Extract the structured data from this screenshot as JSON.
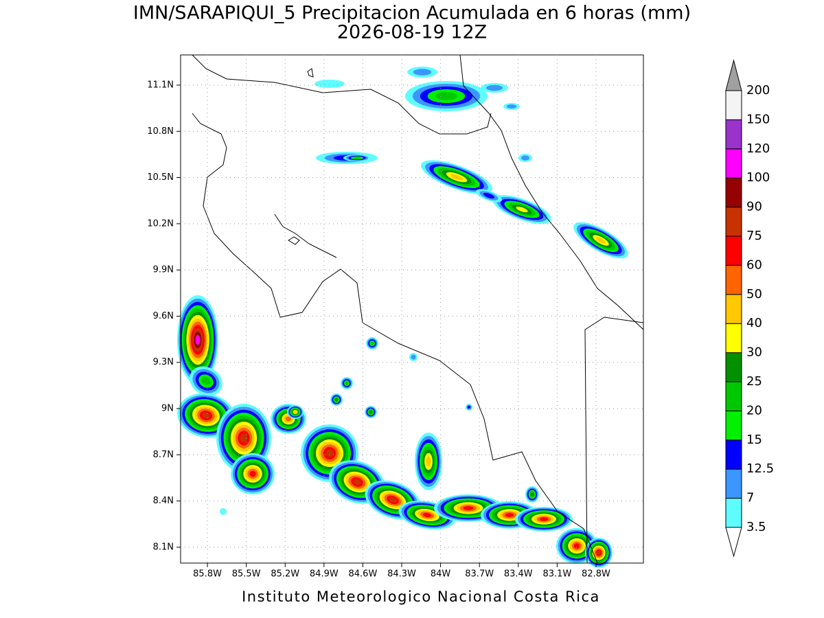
{
  "map": {
    "title": "IMN/SARAPIQUI_5 Precipitacion Acumulada en 6 horas (mm)",
    "subtitle": "2026-08-19 12Z",
    "credit": "Instituto Meteorologico Nacional Costa Rica",
    "lonlim": [
      -86.007,
      -82.434
    ],
    "latlim": [
      7.997,
      11.296
    ],
    "lon_ticks": [
      {
        "value": -85.8,
        "label": "85.8W"
      },
      {
        "value": -85.5,
        "label": "85.5W"
      },
      {
        "value": -85.2,
        "label": "85.2W"
      },
      {
        "value": -84.9,
        "label": "84.9W"
      },
      {
        "value": -84.6,
        "label": "84.6W"
      },
      {
        "value": -84.3,
        "label": "84.3W"
      },
      {
        "value": -84.0,
        "label": "84W"
      },
      {
        "value": -83.7,
        "label": "83.7W"
      },
      {
        "value": -83.4,
        "label": "83.4W"
      },
      {
        "value": -83.1,
        "label": "83.1W"
      },
      {
        "value": -82.8,
        "label": "82.8W"
      }
    ],
    "lat_ticks": [
      {
        "value": 8.1,
        "label": "8.1N"
      },
      {
        "value": 8.4,
        "label": "8.4N"
      },
      {
        "value": 8.7,
        "label": "8.7N"
      },
      {
        "value": 9.0,
        "label": "9N"
      },
      {
        "value": 9.3,
        "label": "9.3N"
      },
      {
        "value": 9.6,
        "label": "9.6N"
      },
      {
        "value": 9.9,
        "label": "9.9N"
      },
      {
        "value": 10.2,
        "label": "10.2N"
      },
      {
        "value": 10.5,
        "label": "10.5N"
      },
      {
        "value": 10.8,
        "label": "10.8N"
      },
      {
        "value": 11.1,
        "label": "11.1N"
      }
    ],
    "grid": true,
    "colorbar": {
      "levels": [
        3.5,
        7,
        12.5,
        15,
        20,
        25,
        30,
        40,
        50,
        60,
        75,
        90,
        100,
        120,
        150,
        200
      ],
      "under_color": "#ffffff",
      "over_color": "#a0a0a0",
      "colors": [
        "#5ffcff",
        "#3c96ff",
        "#0000ff",
        "#00f000",
        "#00c800",
        "#009000",
        "#ffff00",
        "#ffc800",
        "#ff6400",
        "#ff0000",
        "#c83200",
        "#960000",
        "#ff00ff",
        "#9933cc",
        "#f4f4f4"
      ]
    }
  }
}
